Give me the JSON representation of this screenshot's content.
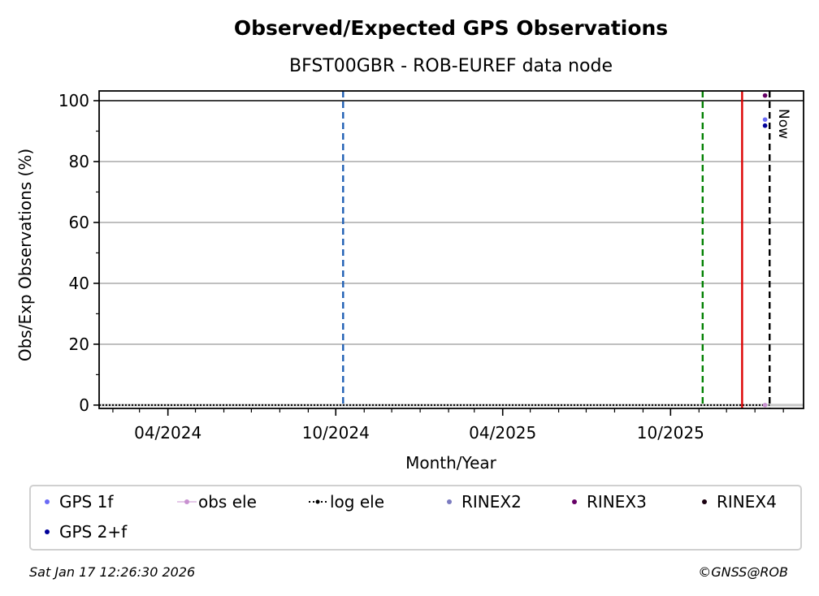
{
  "chart_data": {
    "type": "scatter",
    "title": "Observed/Expected GPS Observations",
    "subtitle": "BFST00GBR - ROB-EUREF data node",
    "xlabel": "Month/Year",
    "ylabel": "Obs/Exp Observations (%)",
    "xlim": [
      "2024-01-17",
      "2026-02-23"
    ],
    "ylim": [
      -1.1,
      103.2
    ],
    "yticks": [
      0,
      20,
      40,
      60,
      80,
      100
    ],
    "xticks": [
      {
        "date": "2024-04-01",
        "label": "04/2024"
      },
      {
        "date": "2024-10-01",
        "label": "10/2024"
      },
      {
        "date": "2025-04-01",
        "label": "04/2025"
      },
      {
        "date": "2025-10-01",
        "label": "10/2025"
      }
    ],
    "grid": true,
    "reference_line_y": 100,
    "vlines": [
      {
        "date": "2024-10-09",
        "color": "#1f5fb4",
        "style": "dashed"
      },
      {
        "date": "2025-11-05",
        "color": "#008000",
        "style": "dashed"
      },
      {
        "date": "2025-12-18",
        "color": "#dd0000",
        "style": "solid"
      },
      {
        "date": "2026-01-17",
        "color": "#000000",
        "style": "dashed",
        "label": "Now"
      }
    ],
    "series": [
      {
        "name": "GPS 1f",
        "color": "#6a6af5",
        "points": [
          {
            "date": "2026-01-12",
            "y": 93.8
          }
        ]
      },
      {
        "name": "obs ele",
        "color": "#c890d0",
        "points": [
          {
            "date": "2026-01-12",
            "y": 0
          }
        ]
      },
      {
        "name": "log ele",
        "color": "#000000",
        "points": []
      },
      {
        "name": "RINEX2",
        "color": "#7b7bc0",
        "points": []
      },
      {
        "name": "RINEX3",
        "color": "#660066",
        "points": [
          {
            "date": "2026-01-12",
            "y": 101.7
          }
        ]
      },
      {
        "name": "RINEX4",
        "color": "#1a0010",
        "points": []
      },
      {
        "name": "GPS 2+f",
        "color": "#000099",
        "points": [
          {
            "date": "2026-01-12",
            "y": 91.8
          }
        ]
      }
    ],
    "legend_position": "bottom"
  },
  "footer": {
    "timestamp": "Sat Jan 17 12:26:30 2026",
    "credit": "©GNSS@ROB"
  }
}
